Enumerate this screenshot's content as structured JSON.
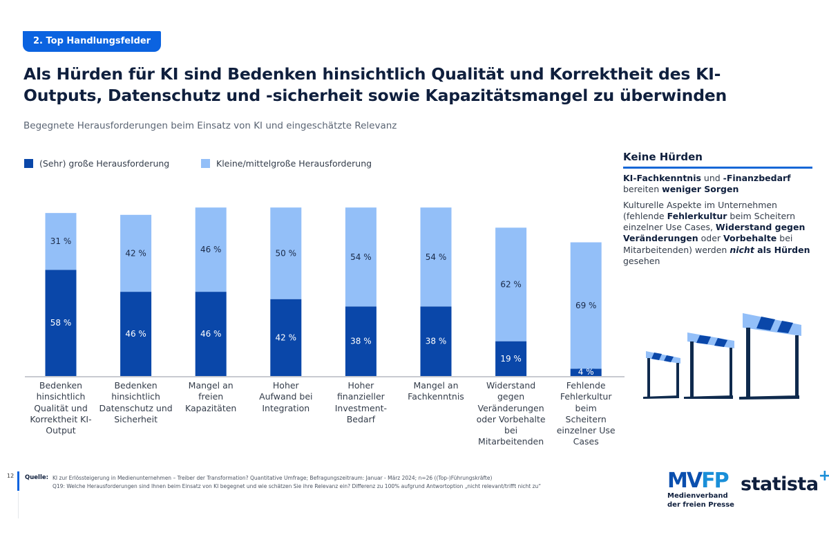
{
  "section_tag": "2. Top Handlungsfelder",
  "title": "Als Hürden für KI sind Bedenken hinsichtlich Qualität und Korrektheit des KI-Outputs, Datenschutz und -sicherheit sowie Kapazitätsmangel zu überwinden",
  "subtitle": "Begegnete Herausforderungen beim Einsatz von KI und eingeschätzte Relevanz",
  "colors": {
    "dark": "#0a47a9",
    "light": "#93bff8",
    "accent": "#0b63e0",
    "text": "#0f1f3d"
  },
  "chart_data": {
    "type": "bar",
    "stacked": true,
    "title": "Begegnete Herausforderungen beim Einsatz von KI und eingeschätzte Relevanz",
    "xlabel": "",
    "ylabel": "",
    "ylim": [
      0,
      100
    ],
    "unit": "%",
    "grid": false,
    "legend_position": "top-left",
    "categories": [
      "Bedenken hinsichtlich Qualität und Korrektheit KI-Output",
      "Bedenken hinsichtlich Datenschutz und Sicherheit",
      "Mangel an freien Kapazitäten",
      "Hoher Aufwand bei Integration",
      "Hoher finanzieller Investment-Bedarf",
      "Mangel an Fachkenntnis",
      "Widerstand gegen Veränderungen oder Vorbehalte bei Mitarbeitenden",
      "Fehlende Fehlerkultur beim Scheitern einzelner Use Cases"
    ],
    "series": [
      {
        "name": "(Sehr) große Herausforderung",
        "color": "#0a47a9",
        "values": [
          58,
          46,
          46,
          42,
          38,
          38,
          19,
          4
        ]
      },
      {
        "name": "Kleine/mittelgroße Herausforderung",
        "color": "#93bff8",
        "values": [
          31,
          42,
          46,
          50,
          54,
          54,
          62,
          69
        ]
      }
    ]
  },
  "category_labels": [
    [
      "Bedenken",
      "hinsichtlich",
      "Qualität und",
      "Korrektheit KI-",
      "Output"
    ],
    [
      "Bedenken",
      "hinsichtlich",
      "Datenschutz und",
      "Sicherheit"
    ],
    [
      "Mangel an",
      "freien",
      "Kapazitäten"
    ],
    [
      "Hoher",
      "Aufwand bei",
      "Integration"
    ],
    [
      "Hoher",
      "finanzieller",
      "Investment-",
      "Bedarf"
    ],
    [
      "Mangel an",
      "Fachkenntnis"
    ],
    [
      "Widerstand gegen",
      "Veränderungen",
      "oder Vorbehalte",
      "bei",
      "Mitarbeitenden"
    ],
    [
      "Fehlende",
      "Fehlerkultur",
      "beim",
      "Scheitern",
      "einzelner Use",
      "Cases"
    ]
  ],
  "side_panel": {
    "title": "Keine Hürden",
    "p1": {
      "b1": "KI-Fachkenntnis",
      "t1": " und ",
      "b2": "-Finanzbedarf",
      "t2": " bereiten ",
      "b3": "weniger Sorgen"
    },
    "p2": {
      "t1": "Kulturelle Aspekte im Unternehmen (fehlende ",
      "b1": "Fehlerkultur",
      "t2": " beim Scheitern einzelner Use Cases, ",
      "b2": "Widerstand gegen Veränderungen",
      "t3": " oder ",
      "b3": "Vorbehalte",
      "t4": " bei Mitarbeitenden) werden ",
      "bi": "nicht",
      "b4": " als Hürden",
      "t5": " gesehen"
    },
    "illustration": "hurdles-icon"
  },
  "footer": {
    "page_number": "12",
    "source_label": "Quelle:",
    "source_line1": "KI zur Erlössteigerung in Medienunternehmen – Treiber der Transformation? Quantitative Umfrage; Befragungszeitraum: Januar - März 2024; n=26 ((Top-)Führungskräfte)",
    "source_line2": "Q19: Welche Herausforderungen sind Ihnen beim Einsatz von KI begegnet und wie schätzen Sie ihre Relevanz ein? Differenz zu 100% aufgrund Antwortoption „nicht relevant/trifft nicht zu“"
  },
  "logos": {
    "mvfp_word_a": "MV",
    "mvfp_word_b": "FP",
    "mvfp_line1": "Medienverband",
    "mvfp_line2": "der freien Presse",
    "statista": "statista",
    "statista_plus": "+"
  }
}
